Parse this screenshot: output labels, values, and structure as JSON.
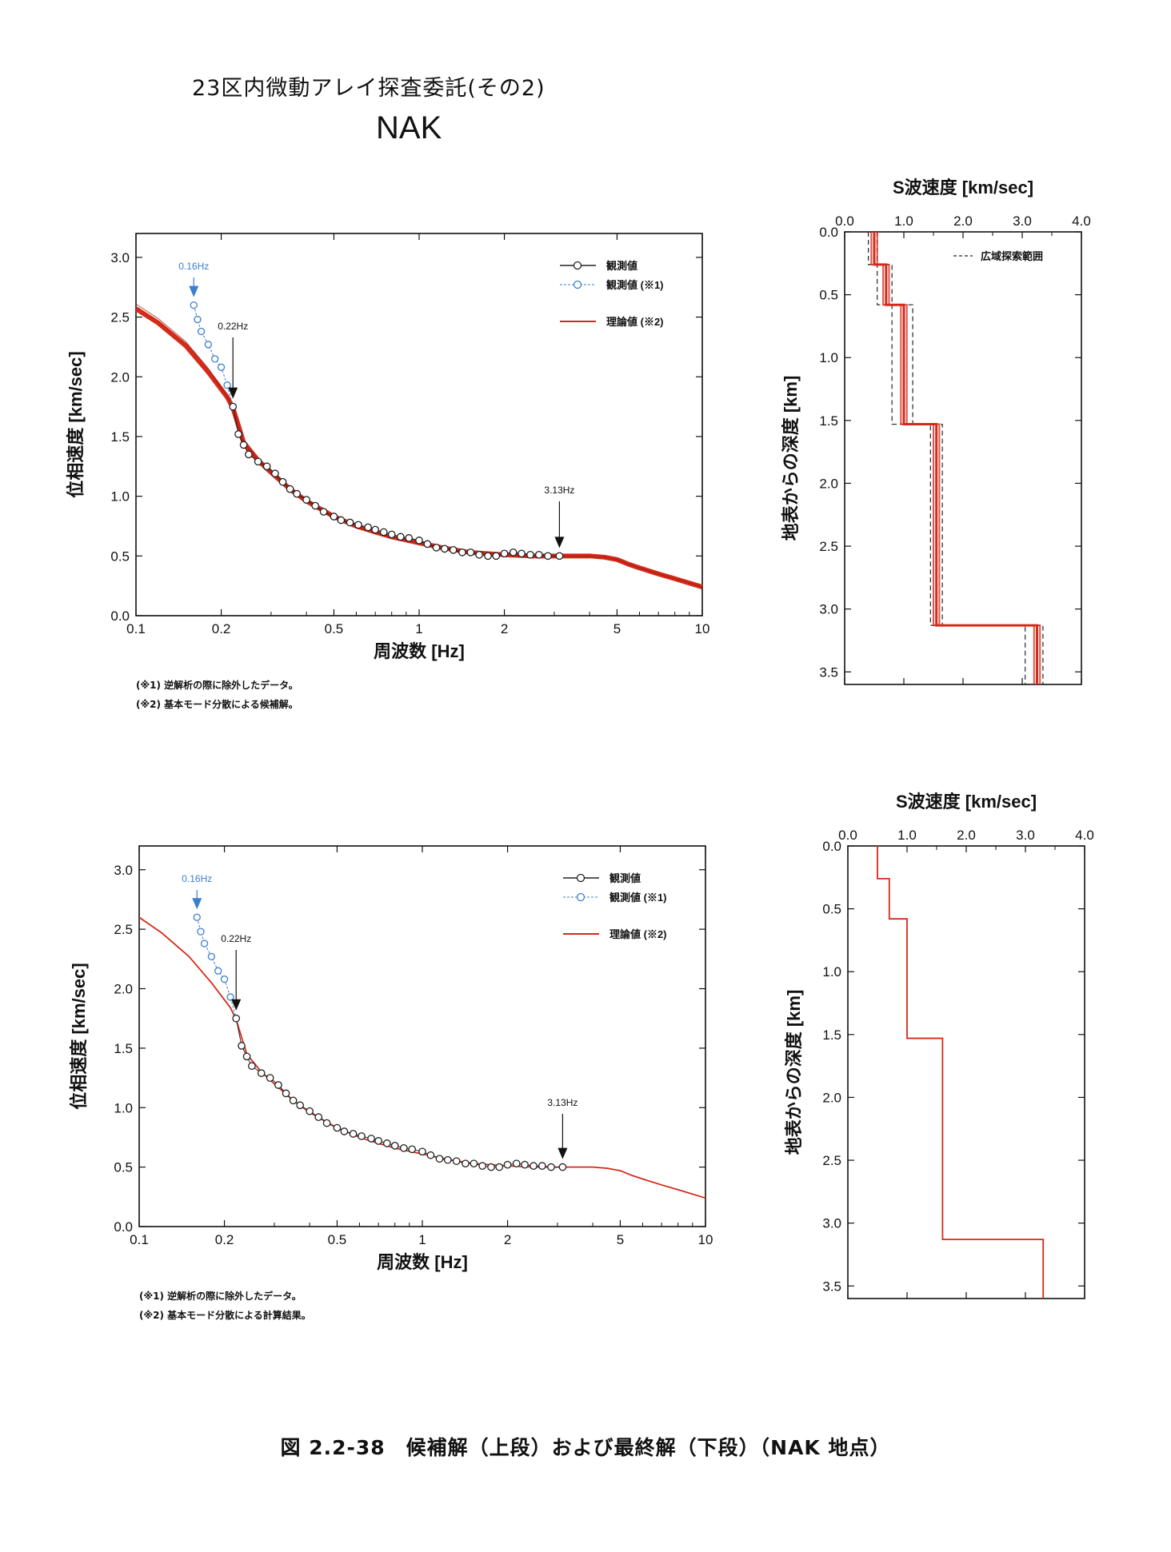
{
  "page": {
    "title": "23区内微動アレイ探査委託(その2)",
    "site": "NAK",
    "caption": "図 2.2-38　候補解（上段）および最終解（下段）（NAK 地点）"
  },
  "notes_top": [
    "(※1) 逆解析の際に除外したデータ。",
    "(※2) 基本モード分散による候補解。"
  ],
  "notes_bottom": [
    "(※1) 逆解析の際に除外したデータ。",
    "(※2) 基本モード分散による計算結果。"
  ],
  "colors": {
    "observed": "#222222",
    "excluded": "#3a7fd0",
    "theory": "#d42a1a"
  },
  "chart_data": [
    {
      "type": "line",
      "panel": "dispersion-top",
      "xlabel": "周波数 [Hz]",
      "ylabel": "位相速度 [km/sec]",
      "xscale": "log",
      "xlim": [
        0.1,
        10
      ],
      "ylim": [
        0,
        3.2
      ],
      "xticks": [
        "0.1",
        "0.2",
        "0.5",
        "1",
        "2",
        "5",
        "10"
      ],
      "yticks": [
        "0.0",
        "0.5",
        "1.0",
        "1.5",
        "2.0",
        "2.5",
        "3.0"
      ],
      "legend": [
        "観測値",
        "観測値 (※1)",
        "理論値 (※2)"
      ],
      "legend_position": "top-right",
      "annotations": [
        "0.16Hz",
        "0.22Hz",
        "3.13Hz"
      ],
      "series": [
        {
          "name": "観測値 (※1)",
          "x": [
            0.16,
            0.165,
            0.17,
            0.18,
            0.19,
            0.2,
            0.21
          ],
          "y": [
            2.6,
            2.48,
            2.38,
            2.27,
            2.15,
            2.08,
            1.93
          ]
        },
        {
          "name": "観測値",
          "x": [
            0.22,
            0.23,
            0.24,
            0.25,
            0.27,
            0.29,
            0.31,
            0.33,
            0.35,
            0.37,
            0.4,
            0.43,
            0.46,
            0.5,
            0.53,
            0.57,
            0.61,
            0.66,
            0.7,
            0.75,
            0.8,
            0.86,
            0.92,
            1.0,
            1.07,
            1.15,
            1.23,
            1.32,
            1.42,
            1.52,
            1.63,
            1.75,
            1.87,
            2.0,
            2.15,
            2.3,
            2.47,
            2.65,
            2.85,
            3.13
          ],
          "y": [
            1.75,
            1.52,
            1.43,
            1.35,
            1.29,
            1.25,
            1.19,
            1.12,
            1.06,
            1.02,
            0.97,
            0.92,
            0.87,
            0.83,
            0.8,
            0.78,
            0.76,
            0.74,
            0.72,
            0.7,
            0.68,
            0.66,
            0.65,
            0.63,
            0.6,
            0.57,
            0.56,
            0.55,
            0.53,
            0.53,
            0.51,
            0.5,
            0.5,
            0.52,
            0.53,
            0.52,
            0.51,
            0.51,
            0.5,
            0.5
          ]
        },
        {
          "name": "理論値 (※2)",
          "x": [
            0.1,
            0.12,
            0.15,
            0.18,
            0.21,
            0.22,
            0.24,
            0.27,
            0.3,
            0.35,
            0.4,
            0.5,
            0.6,
            0.7,
            0.8,
            1.0,
            1.2,
            1.5,
            2.0,
            2.5,
            3.0,
            3.5,
            4.0,
            4.5,
            5.0,
            5.5,
            6.0,
            7.0,
            8.0,
            10.0
          ],
          "y": [
            2.57,
            2.45,
            2.26,
            2.04,
            1.83,
            1.74,
            1.45,
            1.3,
            1.2,
            1.06,
            0.96,
            0.83,
            0.75,
            0.7,
            0.66,
            0.61,
            0.57,
            0.53,
            0.51,
            0.5,
            0.5,
            0.5,
            0.5,
            0.49,
            0.47,
            0.43,
            0.4,
            0.35,
            0.31,
            0.24
          ]
        }
      ]
    },
    {
      "type": "line",
      "panel": "profile-top",
      "title": "S波速度 [km/sec]",
      "ylabel": "地表からの深度 [km]",
      "xlim": [
        0,
        4.0
      ],
      "ylim": [
        0,
        3.6
      ],
      "xticks": [
        "0.0",
        "1.0",
        "2.0",
        "3.0",
        "4.0"
      ],
      "yticks": [
        "0.0",
        "0.5",
        "1.0",
        "1.5",
        "2.0",
        "2.5",
        "3.0",
        "3.5"
      ],
      "legend": [
        "広域探索範囲"
      ],
      "legend_position": "top-right",
      "series": [
        {
          "name": "理論値 (※2)",
          "vs": [
            0.5,
            0.7,
            1.0,
            1.55,
            3.25
          ],
          "depth_top": [
            0,
            0.26,
            0.58,
            1.53,
            3.13
          ],
          "depth_bottom": 3.6
        },
        {
          "name": "広域探索範囲",
          "vs_min": [
            0.4,
            0.55,
            0.8,
            1.45,
            3.05
          ],
          "vs_max": [
            0.55,
            0.8,
            1.15,
            1.65,
            3.35
          ],
          "depth_top": [
            0,
            0.26,
            0.58,
            1.53,
            3.13
          ],
          "depth_bottom": 3.6
        }
      ]
    },
    {
      "type": "line",
      "panel": "dispersion-bottom",
      "xlabel": "周波数 [Hz]",
      "ylabel": "位相速度 [km/sec]",
      "xscale": "log",
      "xlim": [
        0.1,
        10
      ],
      "ylim": [
        0,
        3.2
      ],
      "xticks": [
        "0.1",
        "0.2",
        "0.5",
        "1",
        "2",
        "5",
        "10"
      ],
      "yticks": [
        "0.0",
        "0.5",
        "1.0",
        "1.5",
        "2.0",
        "2.5",
        "3.0"
      ],
      "legend": [
        "観測値",
        "観測値 (※1)",
        "理論値 (※2)"
      ],
      "legend_position": "top-right",
      "annotations": [
        "0.16Hz",
        "0.22Hz",
        "3.13Hz"
      ],
      "series": [
        {
          "name": "観測値 (※1)",
          "x": [
            0.16,
            0.165,
            0.17,
            0.18,
            0.19,
            0.2,
            0.21
          ],
          "y": [
            2.6,
            2.48,
            2.38,
            2.27,
            2.15,
            2.08,
            1.93
          ]
        },
        {
          "name": "観測値",
          "x": [
            0.22,
            0.23,
            0.24,
            0.25,
            0.27,
            0.29,
            0.31,
            0.33,
            0.35,
            0.37,
            0.4,
            0.43,
            0.46,
            0.5,
            0.53,
            0.57,
            0.61,
            0.66,
            0.7,
            0.75,
            0.8,
            0.86,
            0.92,
            1.0,
            1.07,
            1.15,
            1.23,
            1.32,
            1.42,
            1.52,
            1.63,
            1.75,
            1.87,
            2.0,
            2.15,
            2.3,
            2.47,
            2.65,
            2.85,
            3.13
          ],
          "y": [
            1.75,
            1.52,
            1.43,
            1.35,
            1.29,
            1.25,
            1.19,
            1.12,
            1.06,
            1.02,
            0.97,
            0.92,
            0.87,
            0.83,
            0.8,
            0.78,
            0.76,
            0.74,
            0.72,
            0.7,
            0.68,
            0.66,
            0.65,
            0.63,
            0.6,
            0.57,
            0.56,
            0.55,
            0.53,
            0.53,
            0.51,
            0.5,
            0.5,
            0.52,
            0.53,
            0.52,
            0.51,
            0.51,
            0.5,
            0.5
          ]
        },
        {
          "name": "理論値 (※2)",
          "x": [
            0.1,
            0.12,
            0.15,
            0.18,
            0.21,
            0.22,
            0.24,
            0.27,
            0.3,
            0.35,
            0.4,
            0.5,
            0.6,
            0.7,
            0.8,
            1.0,
            1.2,
            1.5,
            2.0,
            2.5,
            3.0,
            3.5,
            4.0,
            4.5,
            5.0,
            5.5,
            6.0,
            7.0,
            8.0,
            10.0
          ],
          "y": [
            2.6,
            2.47,
            2.27,
            2.05,
            1.84,
            1.74,
            1.45,
            1.3,
            1.2,
            1.06,
            0.96,
            0.83,
            0.75,
            0.7,
            0.66,
            0.61,
            0.57,
            0.53,
            0.51,
            0.5,
            0.5,
            0.5,
            0.5,
            0.49,
            0.47,
            0.43,
            0.4,
            0.35,
            0.31,
            0.24
          ]
        }
      ]
    },
    {
      "type": "line",
      "panel": "profile-bottom",
      "title": "S波速度 [km/sec]",
      "ylabel": "地表からの深度 [km]",
      "xlim": [
        0,
        4.0
      ],
      "ylim": [
        0,
        3.6
      ],
      "xticks": [
        "0.0",
        "1.0",
        "2.0",
        "3.0",
        "4.0"
      ],
      "yticks": [
        "0.0",
        "0.5",
        "1.0",
        "1.5",
        "2.0",
        "2.5",
        "3.0",
        "3.5"
      ],
      "series": [
        {
          "name": "理論値 (※2)",
          "vs": [
            0.5,
            0.7,
            1.0,
            1.6,
            3.3
          ],
          "depth_top": [
            0,
            0.26,
            0.58,
            1.53,
            3.13
          ],
          "depth_bottom": 3.6
        }
      ]
    }
  ]
}
